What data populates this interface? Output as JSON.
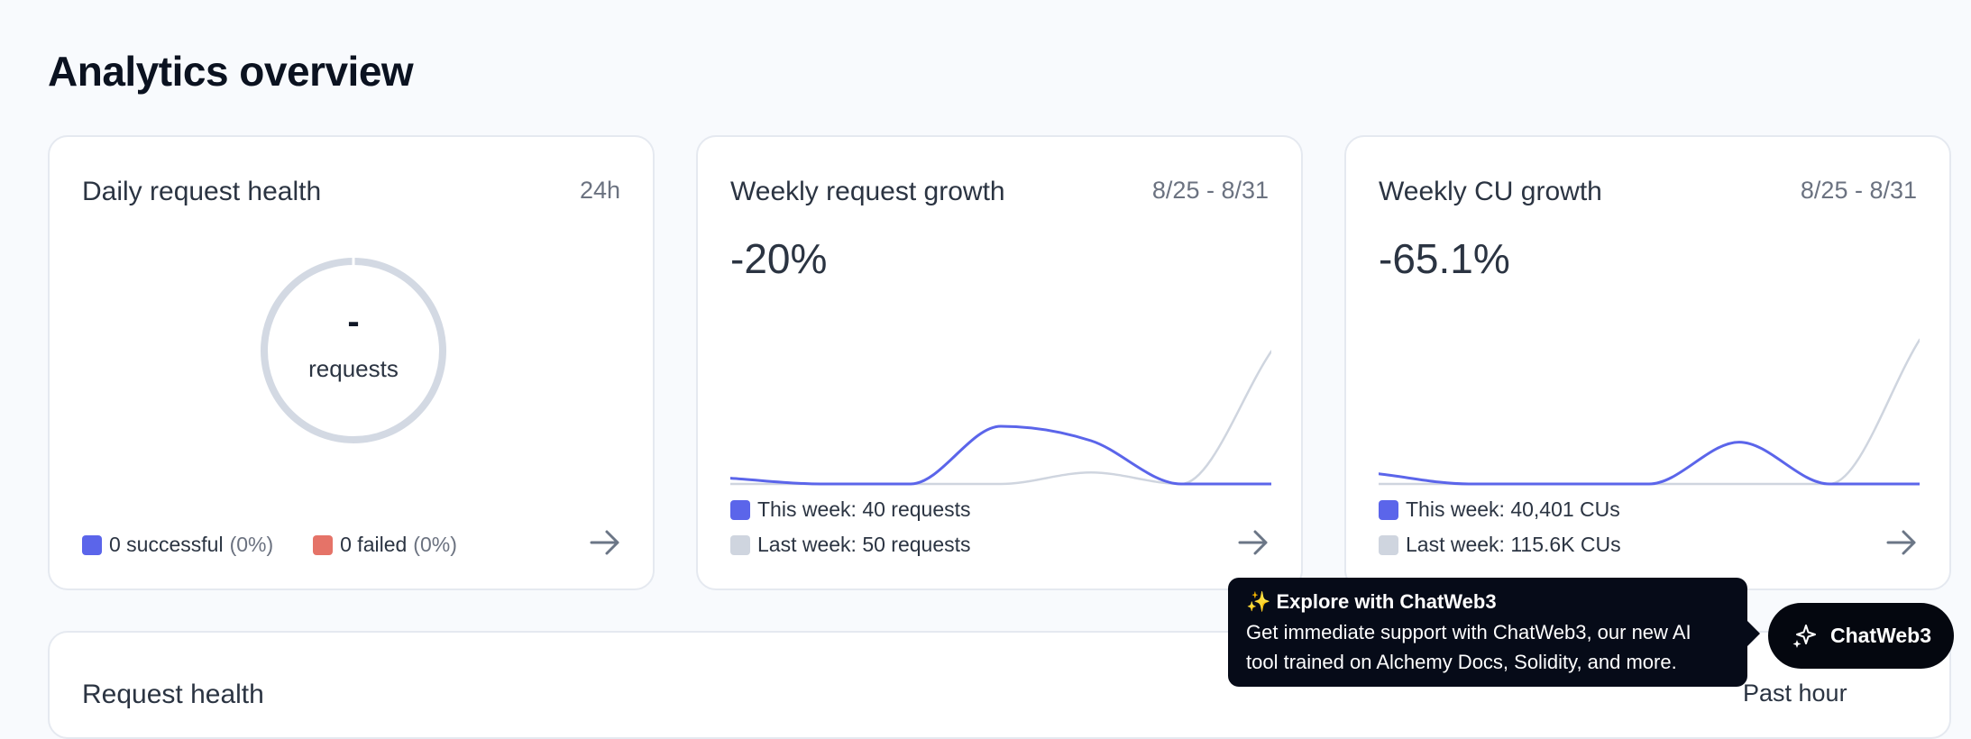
{
  "page": {
    "title": "Analytics overview"
  },
  "colors": {
    "this_week": "#5b65ea",
    "last_week": "#cfd5df",
    "success": "#5b65ea",
    "failed": "#e57368",
    "donut_ring": "#d3d9e3"
  },
  "cards": {
    "daily": {
      "title": "Daily request health",
      "range": "24h",
      "center_value": "-",
      "center_unit": "requests",
      "successful_label": "0 successful",
      "successful_pct": "(0%)",
      "failed_label": "0 failed",
      "failed_pct": "(0%)"
    },
    "weekly_requests": {
      "title": "Weekly request growth",
      "range": "8/25 - 8/31",
      "growth": "-20%",
      "legend_this": "This week: 40 requests",
      "legend_last": "Last week: 50 requests"
    },
    "weekly_cu": {
      "title": "Weekly CU growth",
      "range": "8/25 - 8/31",
      "growth": "-65.1%",
      "legend_this": "This week: 40,401 CUs",
      "legend_last": "Last week: 115.6K CUs"
    }
  },
  "bottom": {
    "title": "Request health",
    "range": "Past hour"
  },
  "tooltip": {
    "title": "✨ Explore with ChatWeb3",
    "line1": "Get immediate support with ChatWeb3, our new AI",
    "line2": "tool trained on Alchemy Docs, Solidity, and more."
  },
  "chat_button": {
    "label": "ChatWeb3",
    "icon": "sparkles-icon"
  },
  "chart_data": [
    {
      "type": "line",
      "x": [
        1,
        2,
        3,
        4,
        5,
        6,
        7
      ],
      "series": [
        {
          "values": [
            4,
            0,
            0,
            40,
            30,
            0,
            0
          ]
        },
        {
          "values": [
            0,
            0,
            0,
            0,
            8,
            0,
            92
          ]
        }
      ],
      "ylim": [
        0,
        100
      ]
    },
    {
      "type": "line",
      "x": [
        1,
        2,
        3,
        4,
        5,
        6,
        7
      ],
      "series": [
        {
          "values": [
            7,
            0,
            0,
            0,
            29,
            0,
            0
          ]
        },
        {
          "values": [
            0,
            0,
            0,
            0,
            0,
            0,
            100
          ]
        }
      ],
      "ylim": [
        0,
        100
      ]
    }
  ]
}
